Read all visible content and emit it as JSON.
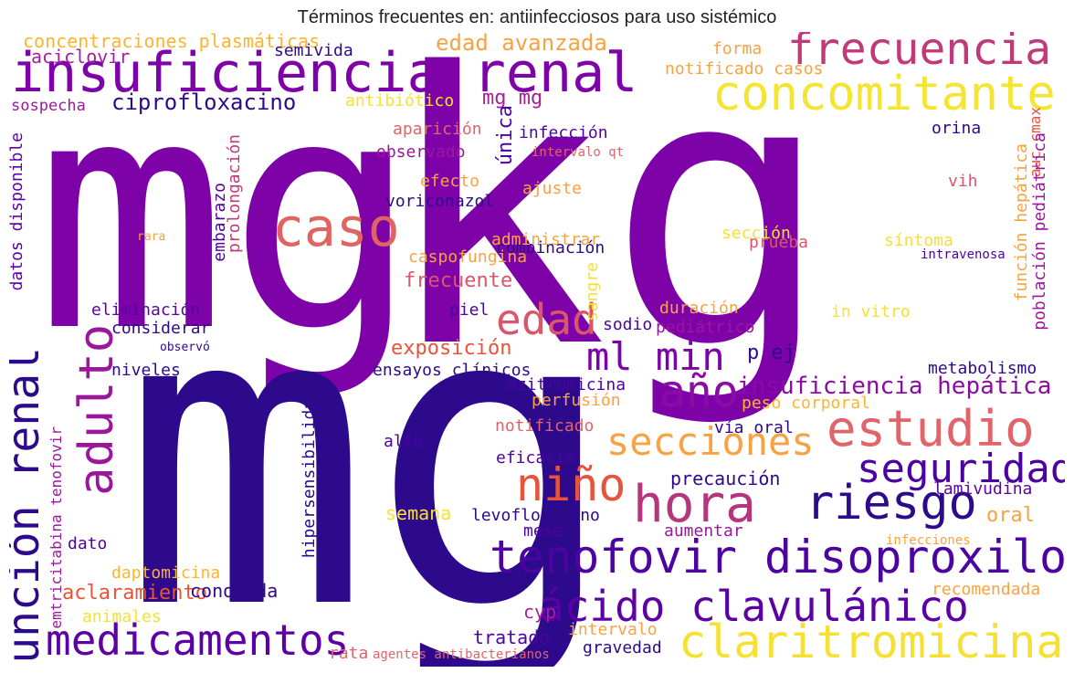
{
  "title": "Términos frecuentes en: antiinfecciosos para uso sistémico",
  "words": [
    {
      "text": "mg",
      "color": "#7d03a8"
    },
    {
      "text": "kg",
      "color": "#7d03a8"
    },
    {
      "text": "mg",
      "color": "#2d0a8c"
    },
    {
      "text": "insuficiencia renal",
      "color": "#7d03a8"
    },
    {
      "text": "concomitante",
      "color": "#f4e532"
    },
    {
      "text": "frecuencia",
      "color": "#c0397a"
    },
    {
      "text": "tenofovir disoproxilo",
      "color": "#4b03a1"
    },
    {
      "text": "estudio",
      "color": "#e0646a"
    },
    {
      "text": "hora",
      "color": "#b5367a"
    },
    {
      "text": "ácido clavulánico",
      "color": "#5c01a6"
    },
    {
      "text": "claritromicina",
      "color": "#f6e034"
    },
    {
      "text": "función renal",
      "color": "#2d0a8c"
    },
    {
      "text": "adulto",
      "color": "#9a179b"
    },
    {
      "text": "caso",
      "color": "#e06461"
    },
    {
      "text": "medicamentos",
      "color": "#5c01a6"
    },
    {
      "text": "riesgo",
      "color": "#2d0a8c"
    },
    {
      "text": "seguridad",
      "color": "#4b03a1"
    },
    {
      "text": "secciones",
      "color": "#f9a242"
    },
    {
      "text": "niño",
      "color": "#e8533b"
    },
    {
      "text": "año",
      "color": "#8a0da3"
    },
    {
      "text": "edad",
      "color": "#d8576b"
    },
    {
      "text": "ml min",
      "color": "#7d03a8"
    },
    {
      "text": "insuficiencia hepática",
      "color": "#8a0da3"
    },
    {
      "text": "ciprofloxacino",
      "color": "#2d0a8c"
    },
    {
      "text": "edad avanzada",
      "color": "#f9a242"
    },
    {
      "text": "concentraciones plasmáticas",
      "color": "#fdb42f"
    },
    {
      "text": "aciclovir",
      "color": "#a62098"
    },
    {
      "text": "semivida",
      "color": "#2d0a8c"
    },
    {
      "text": "sospecha",
      "color": "#9c179e"
    },
    {
      "text": "antibiótico",
      "color": "#f6e034"
    },
    {
      "text": "mg mg",
      "color": "#a62098"
    },
    {
      "text": "forma",
      "color": "#f9a242"
    },
    {
      "text": "notificado casos",
      "color": "#f9a242"
    },
    {
      "text": "aparición",
      "color": "#e0646a"
    },
    {
      "text": "infección",
      "color": "#4b03a1"
    },
    {
      "text": "intervalo qt",
      "color": "#e0646a"
    },
    {
      "text": "observado",
      "color": "#9c179e"
    },
    {
      "text": "única",
      "color": "#4b03a1"
    },
    {
      "text": "orina",
      "color": "#2d0a8c"
    },
    {
      "text": "auc cmax",
      "color": "#e8533b"
    },
    {
      "text": "efecto",
      "color": "#f9a242"
    },
    {
      "text": "ajuste",
      "color": "#f9a242"
    },
    {
      "text": "vih",
      "color": "#d8576b"
    },
    {
      "text": "voriconazol",
      "color": "#2d0a8c"
    },
    {
      "text": "combinación",
      "color": "#2d0a8c"
    },
    {
      "text": "sección",
      "color": "#f6e034"
    },
    {
      "text": "administrar",
      "color": "#f9a242"
    },
    {
      "text": "caspofungina",
      "color": "#f9a242"
    },
    {
      "text": "síntoma",
      "color": "#f6e034"
    },
    {
      "text": "intravenosa",
      "color": "#4b03a1"
    },
    {
      "text": "prueba",
      "color": "#d8576b"
    },
    {
      "text": "frecuente",
      "color": "#d8576b"
    },
    {
      "text": "datos disponible",
      "color": "#5c01a6"
    },
    {
      "text": "embarazo",
      "color": "#4b03a1"
    },
    {
      "text": "prolongación",
      "color": "#c0397a"
    },
    {
      "text": "rara",
      "color": "#f9a242"
    },
    {
      "text": "sangre",
      "color": "#f6e034"
    },
    {
      "text": "función hepática",
      "color": "#f9a242"
    },
    {
      "text": "población pediátrica",
      "color": "#9c179e"
    },
    {
      "text": "eliminación",
      "color": "#5c01a6"
    },
    {
      "text": "piel",
      "color": "#4b03a1"
    },
    {
      "text": "duración",
      "color": "#f9a242"
    },
    {
      "text": "in vitro",
      "color": "#f6e034"
    },
    {
      "text": "considerar",
      "color": "#2d0a8c"
    },
    {
      "text": "sodio",
      "color": "#4b03a1"
    },
    {
      "text": "pediátrico",
      "color": "#9c179e"
    },
    {
      "text": "observó",
      "color": "#2d0a8c"
    },
    {
      "text": "exposición",
      "color": "#e8533b"
    },
    {
      "text": "p ej",
      "color": "#2d0a8c"
    },
    {
      "text": "niveles",
      "color": "#2d0a8c"
    },
    {
      "text": "ensayos clínicos",
      "color": "#2d0a8c"
    },
    {
      "text": "azitromicina",
      "color": "#4b03a1"
    },
    {
      "text": "metabolismo",
      "color": "#2d0a8c"
    },
    {
      "text": "emtricitabina tenofovir",
      "color": "#9c179e"
    },
    {
      "text": "perfusión",
      "color": "#f9a242"
    },
    {
      "text": "peso corporal",
      "color": "#fdb42f"
    },
    {
      "text": "hipersensibilidad",
      "color": "#2d0a8c"
    },
    {
      "text": "notificado",
      "color": "#e0646a"
    },
    {
      "text": "vía oral",
      "color": "#2d0a8c"
    },
    {
      "text": "alta",
      "color": "#4b03a1"
    },
    {
      "text": "eficacia",
      "color": "#4b03a1"
    },
    {
      "text": "precaución",
      "color": "#2d0a8c"
    },
    {
      "text": "lamivudina",
      "color": "#5c01a6"
    },
    {
      "text": "semana",
      "color": "#f6e034"
    },
    {
      "text": "levofloxacino",
      "color": "#2d0a8c"
    },
    {
      "text": "mese",
      "color": "#4b03a1"
    },
    {
      "text": "oral",
      "color": "#f9a242"
    },
    {
      "text": "dato",
      "color": "#4b03a1"
    },
    {
      "text": "aumentar",
      "color": "#9c179e"
    },
    {
      "text": "infecciones",
      "color": "#f9a242"
    },
    {
      "text": "daptomicina",
      "color": "#fdb42f"
    },
    {
      "text": "aclaramiento",
      "color": "#e8533b"
    },
    {
      "text": "conocida",
      "color": "#2d0a8c"
    },
    {
      "text": "recomendada",
      "color": "#f9a242"
    },
    {
      "text": "cyp",
      "color": "#a62098"
    },
    {
      "text": "animales",
      "color": "#f6e034"
    },
    {
      "text": "tratado",
      "color": "#4b03a1"
    },
    {
      "text": "intervalo",
      "color": "#f9a242"
    },
    {
      "text": "rata",
      "color": "#e0646a"
    },
    {
      "text": "agentes antibacterianos",
      "color": "#e0646a"
    },
    {
      "text": "gravedad",
      "color": "#2d0a8c"
    }
  ]
}
